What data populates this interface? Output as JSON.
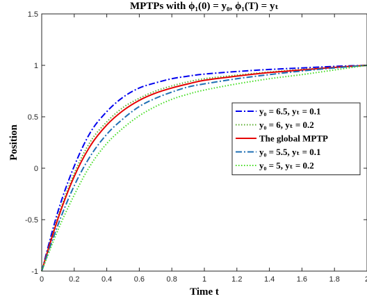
{
  "chart_data": {
    "type": "line",
    "title": "MPTPs with ϕ₁(0) = y₀, ϕ₁(T) = yₜ",
    "xlabel": "Time t",
    "ylabel": "Position",
    "xlim": [
      0,
      2
    ],
    "ylim": [
      -1,
      1.5
    ],
    "xticks": [
      "0",
      "0.2",
      "0.4",
      "0.6",
      "0.8",
      "1",
      "1.2",
      "1.4",
      "1.6",
      "1.8",
      "2"
    ],
    "yticks": [
      "-1",
      "-0.5",
      "0",
      "0.5",
      "1",
      "1.5"
    ],
    "grid": false,
    "legend_position": "right",
    "x": [
      0,
      0.1,
      0.2,
      0.3,
      0.4,
      0.5,
      0.6,
      0.7,
      0.8,
      0.9,
      1.0,
      1.2,
      1.4,
      1.6,
      1.8,
      2.0
    ],
    "series": [
      {
        "name": "y₀ = 6.5, yₜ = 0.1",
        "color": "#0000ee",
        "dash": "dashdot",
        "values": [
          -1,
          -0.42,
          0.02,
          0.35,
          0.55,
          0.69,
          0.78,
          0.83,
          0.87,
          0.895,
          0.915,
          0.94,
          0.96,
          0.975,
          0.99,
          1.0
        ]
      },
      {
        "name": "y₀ = 6, yₜ = 0.2",
        "color": "#5aae2e",
        "dash": "dotted",
        "values": [
          -1,
          -0.47,
          -0.05,
          0.26,
          0.45,
          0.59,
          0.68,
          0.75,
          0.8,
          0.84,
          0.87,
          0.905,
          0.935,
          0.96,
          0.98,
          1.0
        ]
      },
      {
        "name": "The global MPTP",
        "color": "#e60000",
        "dash": "solid",
        "values": [
          -1,
          -0.49,
          -0.08,
          0.22,
          0.42,
          0.56,
          0.66,
          0.73,
          0.78,
          0.82,
          0.855,
          0.895,
          0.93,
          0.955,
          0.98,
          1.0
        ]
      },
      {
        "name": "y₀ = 5.5, yₜ = 0.1",
        "color": "#1f6fb4",
        "dash": "dashdot",
        "values": [
          -1,
          -0.55,
          -0.17,
          0.12,
          0.33,
          0.48,
          0.6,
          0.68,
          0.74,
          0.79,
          0.82,
          0.87,
          0.91,
          0.945,
          0.975,
          1.0
        ]
      },
      {
        "name": "y₀ = 5, yₜ = 0.2",
        "color": "#44dd22",
        "dash": "dotted",
        "values": [
          -1,
          -0.6,
          -0.26,
          0.03,
          0.24,
          0.39,
          0.51,
          0.6,
          0.67,
          0.72,
          0.76,
          0.82,
          0.87,
          0.91,
          0.955,
          1.0
        ]
      }
    ]
  }
}
